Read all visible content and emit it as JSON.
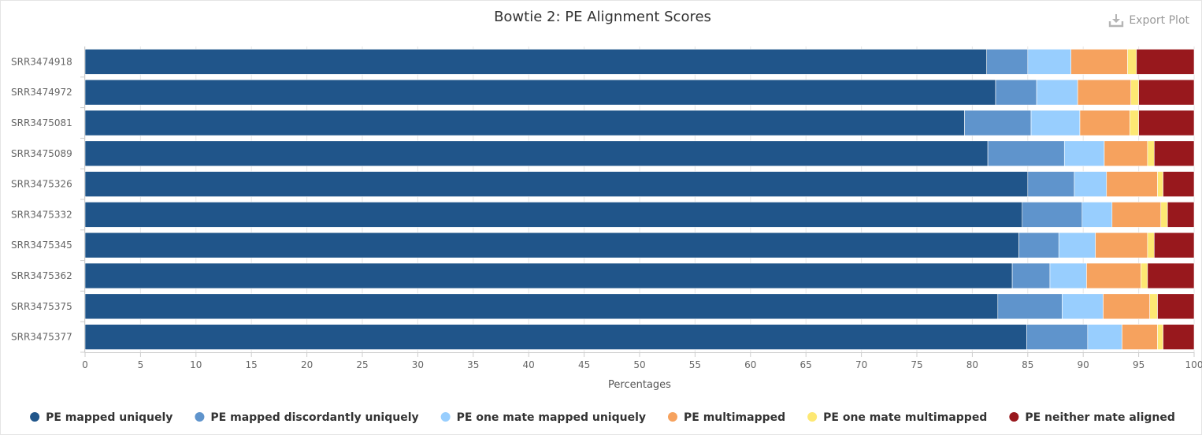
{
  "toolbar": {
    "export_label": "Export Plot",
    "export_icon": "download-icon"
  },
  "chart_data": {
    "type": "bar",
    "orientation": "horizontal",
    "stacked": true,
    "title": "Bowtie 2: PE Alignment Scores",
    "xlabel": "Percentages",
    "ylabel": "",
    "xlim": [
      0,
      100
    ],
    "xticks": [
      0,
      5,
      10,
      15,
      20,
      25,
      30,
      35,
      40,
      45,
      50,
      55,
      60,
      65,
      70,
      75,
      80,
      85,
      90,
      95,
      100
    ],
    "legend_position": "bottom-center",
    "grid": true,
    "categories": [
      "SRR3474918",
      "SRR3474972",
      "SRR3475081",
      "SRR3475089",
      "SRR3475326",
      "SRR3475332",
      "SRR3475345",
      "SRR3475362",
      "SRR3475375",
      "SRR3475377"
    ],
    "series": [
      {
        "name": "PE mapped uniquely",
        "color": "#20558a",
        "values": [
          81.3,
          82.1,
          79.3,
          81.4,
          85.0,
          84.5,
          84.2,
          83.6,
          82.3,
          84.9
        ]
      },
      {
        "name": "PE mapped discordantly uniquely",
        "color": "#5f94cc",
        "values": [
          3.7,
          3.7,
          6.0,
          6.9,
          4.2,
          5.4,
          3.6,
          3.4,
          5.8,
          5.5
        ]
      },
      {
        "name": "PE one mate mapped uniquely",
        "color": "#98cefe",
        "values": [
          3.9,
          3.7,
          4.4,
          3.6,
          2.9,
          2.7,
          3.3,
          3.3,
          3.7,
          3.1
        ]
      },
      {
        "name": "PE multimapped",
        "color": "#f6a25e",
        "values": [
          5.1,
          4.8,
          4.5,
          3.9,
          4.6,
          4.4,
          4.7,
          4.9,
          4.2,
          3.2
        ]
      },
      {
        "name": "PE one mate multimapped",
        "color": "#fde873",
        "values": [
          0.8,
          0.7,
          0.8,
          0.6,
          0.5,
          0.6,
          0.6,
          0.6,
          0.7,
          0.5
        ]
      },
      {
        "name": "PE neither mate aligned",
        "color": "#98181d",
        "values": [
          5.2,
          5.0,
          5.0,
          3.6,
          2.8,
          2.6,
          3.7,
          4.2,
          3.5,
          2.8
        ]
      }
    ]
  }
}
